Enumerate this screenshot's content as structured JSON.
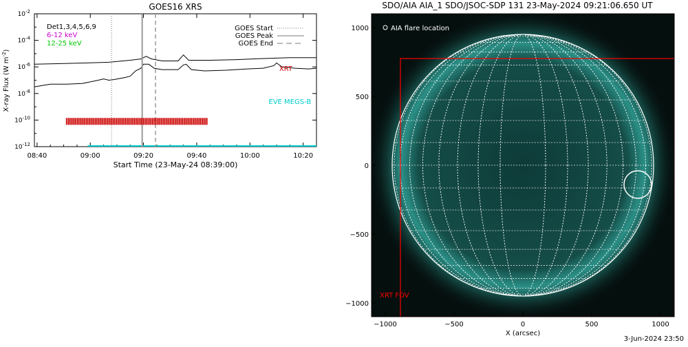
{
  "chart_data": [
    {
      "type": "line",
      "title": "GOES16 XRS",
      "xlabel": "Start Time (23-May-24 08:39:00)",
      "ylabel": "X-ray Flux (W m",
      "ylabel_sup": "-2",
      "ylabel_close": ")",
      "x_range_min": [
        0,
        106
      ],
      "y_log_exp_range": [
        -12,
        -2
      ],
      "x_tick_labels": [
        {
          "min": 1,
          "label": "08:40"
        },
        {
          "min": 21,
          "label": "09:00"
        },
        {
          "min": 41,
          "label": "09:20"
        },
        {
          "min": 61,
          "label": "09:40"
        },
        {
          "min": 81,
          "label": "10:00"
        },
        {
          "min": 101,
          "label": "10:20"
        }
      ],
      "y_tick_exps": [
        -12,
        -10,
        -8,
        -6,
        -4,
        -2
      ],
      "legend_left": [
        {
          "text": "Det1,3,4,5,6,9",
          "color": "#000000"
        },
        {
          "text": "6-12 keV",
          "color": "#cc00cc"
        },
        {
          "text": "12-25 keV",
          "color": "#00cc00"
        }
      ],
      "legend_right": [
        {
          "text": "GOES Start",
          "style": "dotted"
        },
        {
          "text": "GOES Peak",
          "style": "solid"
        },
        {
          "text": "GOES End",
          "style": "dashed"
        }
      ],
      "markers": {
        "start_min": 29,
        "peak_min": 40.5,
        "end_min": 45.5
      },
      "series": [
        {
          "name": "long",
          "color": "#000000",
          "points": [
            [
              0,
              -5.8
            ],
            [
              10,
              -5.75
            ],
            [
              20,
              -5.7
            ],
            [
              28,
              -5.65
            ],
            [
              36,
              -5.5
            ],
            [
              40,
              -5.4
            ],
            [
              42,
              -5.2
            ],
            [
              44,
              -5.4
            ],
            [
              48,
              -5.55
            ],
            [
              54,
              -5.55
            ],
            [
              56,
              -5.1
            ],
            [
              58,
              -5.5
            ],
            [
              66,
              -5.5
            ],
            [
              76,
              -5.45
            ],
            [
              88,
              -5.35
            ],
            [
              96,
              -5.3
            ],
            [
              103,
              -5.3
            ],
            [
              106,
              -5.3
            ]
          ]
        },
        {
          "name": "short",
          "color": "#000000",
          "points": [
            [
              0,
              -7.5
            ],
            [
              6,
              -7.3
            ],
            [
              12,
              -7.3
            ],
            [
              18,
              -7.25
            ],
            [
              24,
              -7.0
            ],
            [
              26,
              -6.9
            ],
            [
              28,
              -7.0
            ],
            [
              30,
              -6.95
            ],
            [
              34,
              -6.8
            ],
            [
              36,
              -6.7
            ],
            [
              38,
              -6.3
            ],
            [
              40,
              -6.1
            ],
            [
              41,
              -5.8
            ],
            [
              43,
              -5.8
            ],
            [
              45,
              -6.1
            ],
            [
              48,
              -6.2
            ],
            [
              54,
              -6.2
            ],
            [
              56,
              -5.85
            ],
            [
              57,
              -5.8
            ],
            [
              59,
              -6.2
            ],
            [
              64,
              -6.3
            ],
            [
              72,
              -6.25
            ],
            [
              80,
              -6.15
            ],
            [
              86,
              -6.1
            ],
            [
              90,
              -5.9
            ],
            [
              91,
              -5.7
            ],
            [
              93,
              -6.0
            ],
            [
              98,
              -6.1
            ],
            [
              103,
              -6.15
            ],
            [
              106,
              -6.1
            ]
          ]
        }
      ],
      "xrt_bar": {
        "start_min": 12,
        "end_min": 65,
        "level_exp": -10.1,
        "color": "#cc0000"
      },
      "eve_line": {
        "start_min": 20,
        "end_min": 106,
        "level_exp": -12,
        "color": "#00cccc"
      },
      "annotations": [
        {
          "text": "XRT",
          "color": "#cc0000",
          "min": 92,
          "exp": -6.3
        },
        {
          "text": "EVE MEGS-B",
          "color": "#00cccc",
          "min": 88,
          "exp": -8.8
        }
      ]
    },
    {
      "type": "image",
      "title": "SDO/AIA AIA_1 SDO/JSOC-SDP 131 23-May-2024 09:21:06.650 UT",
      "xlabel": "X (arcsec)",
      "x_range": [
        -1100,
        1100
      ],
      "y_range": [
        -1100,
        1100
      ],
      "x_ticks": [
        -1000,
        -500,
        0,
        500,
        1000
      ],
      "y_ticks": [
        -1000,
        -500,
        0,
        500,
        1000
      ],
      "tick_labels_x": [
        "−1000",
        "−500",
        "0",
        "500",
        "1000"
      ],
      "tick_labels_y": [
        "−1000",
        "−500",
        "0",
        "500",
        "1000"
      ],
      "sun_radius_arcsec": 950,
      "grid_step_deg": 10,
      "flare_location": [
        835,
        -140
      ],
      "flare_radius_arcsec": 100,
      "flare_legend": "AIA flare location",
      "xrt_fov": {
        "x": [
          -890,
          1100
        ],
        "y": [
          -1100,
          775
        ],
        "label": "XRT FOV",
        "color": "#ff0000"
      }
    }
  ],
  "footer": {
    "timestamp": "3-Jun-2024 23:50"
  }
}
